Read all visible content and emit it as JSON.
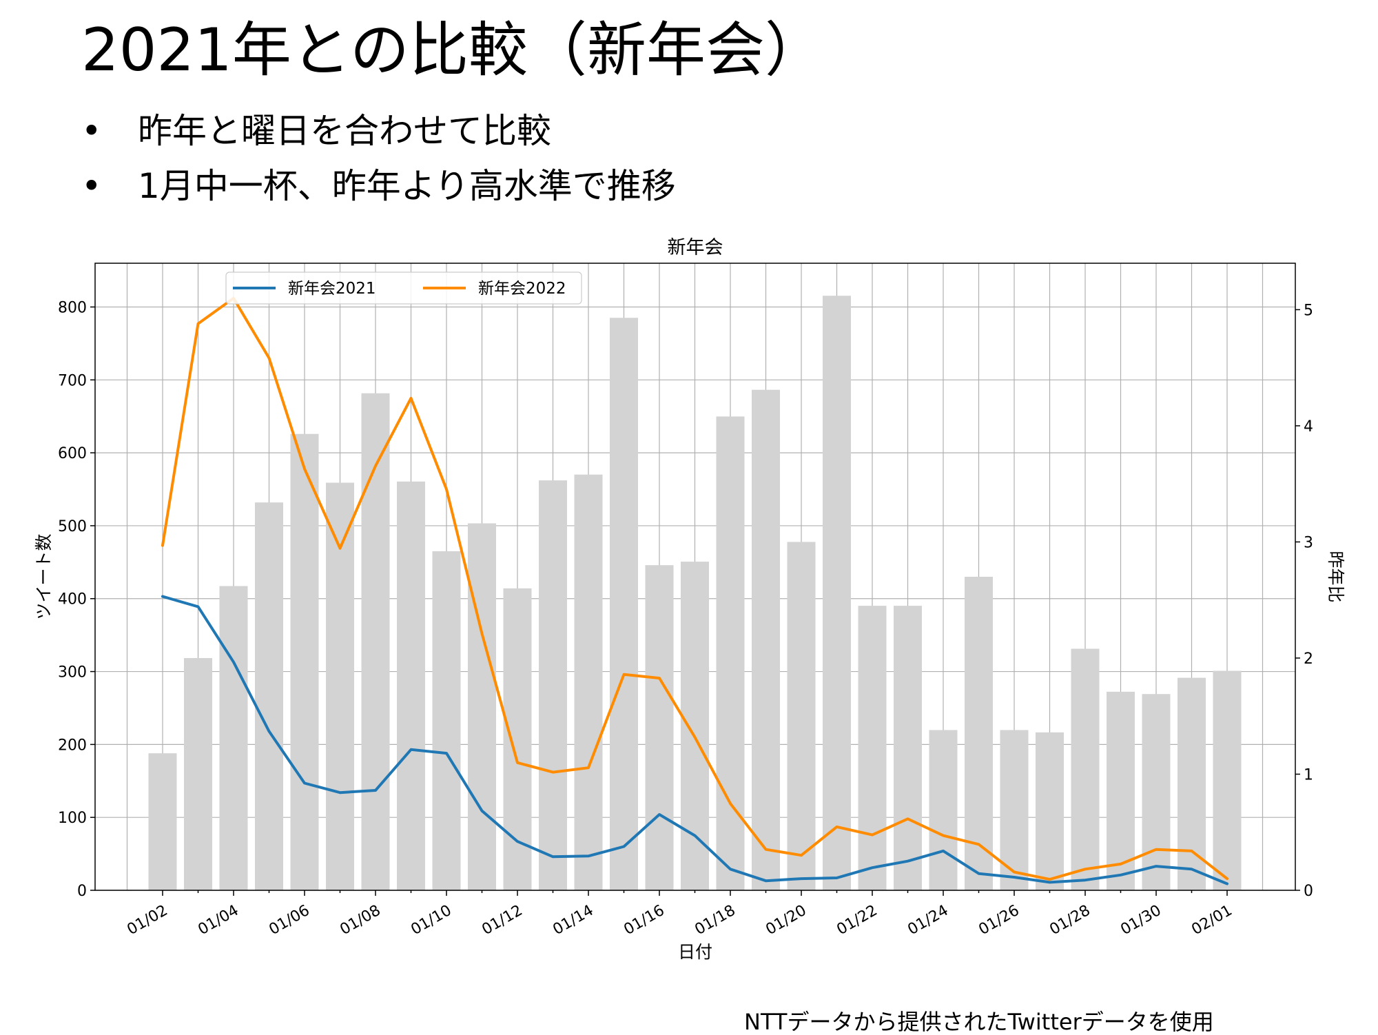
{
  "slide": {
    "title": "2021年との比較（新年会）",
    "bullet_symbol": "•",
    "bullets": [
      "昨年と曜日を合わせて比較",
      "1月中一杯、昨年より高水準で推移"
    ],
    "footnote": "NTTデータから提供されたTwitterデータを使用"
  },
  "chart_data": {
    "type": "bar+line",
    "title": "新年会",
    "xlabel": "日付",
    "ylabel_left": "ツイート数",
    "ylabel_right": "昨年比",
    "dates": [
      "01/02",
      "01/03",
      "01/04",
      "01/05",
      "01/06",
      "01/07",
      "01/08",
      "01/09",
      "01/10",
      "01/11",
      "01/12",
      "01/13",
      "01/14",
      "01/15",
      "01/16",
      "01/17",
      "01/18",
      "01/19",
      "01/20",
      "01/21",
      "01/22",
      "01/23",
      "01/24",
      "01/25",
      "01/26",
      "01/27",
      "01/28",
      "01/29",
      "01/30",
      "01/31",
      "02/01"
    ],
    "xticks": [
      "01/02",
      "01/04",
      "01/06",
      "01/08",
      "01/10",
      "01/12",
      "01/14",
      "01/16",
      "01/18",
      "01/20",
      "01/22",
      "01/24",
      "01/26",
      "01/28",
      "01/30",
      "02/01"
    ],
    "ylim_left": [
      0,
      860
    ],
    "yticks_left": [
      0,
      100,
      200,
      300,
      400,
      500,
      600,
      700,
      800
    ],
    "ylim_right": [
      0,
      5.4
    ],
    "yticks_right": [
      0,
      1,
      2,
      3,
      4,
      5
    ],
    "grid": true,
    "legend_position": "top-left",
    "bars": {
      "axis": "right",
      "color": "#d3d3d3",
      "values": [
        1.18,
        2.0,
        2.62,
        3.34,
        3.93,
        3.51,
        4.28,
        3.52,
        2.92,
        3.16,
        2.6,
        3.53,
        3.58,
        4.93,
        2.8,
        2.83,
        4.08,
        4.31,
        3.0,
        5.12,
        2.45,
        2.45,
        1.38,
        2.7,
        1.38,
        1.36,
        2.08,
        1.71,
        1.69,
        1.83,
        1.89
      ]
    },
    "series": [
      {
        "name": "新年会2021",
        "axis": "left",
        "color": "#1f77b4",
        "values": [
          403,
          389,
          313,
          218,
          147,
          134,
          137,
          193,
          188,
          109,
          67,
          46,
          47,
          60,
          104,
          75,
          29,
          13,
          16,
          17,
          31,
          40,
          54,
          23,
          18,
          11,
          14,
          21,
          33,
          29,
          9
        ]
      },
      {
        "name": "新年会2022",
        "axis": "left",
        "color": "#ff8c00",
        "values": [
          473,
          777,
          812,
          730,
          578,
          469,
          582,
          675,
          550,
          352,
          175,
          162,
          168,
          296,
          291,
          210,
          119,
          56,
          48,
          87,
          76,
          98,
          75,
          63,
          25,
          15,
          29,
          36,
          56,
          54,
          16
        ]
      }
    ]
  }
}
